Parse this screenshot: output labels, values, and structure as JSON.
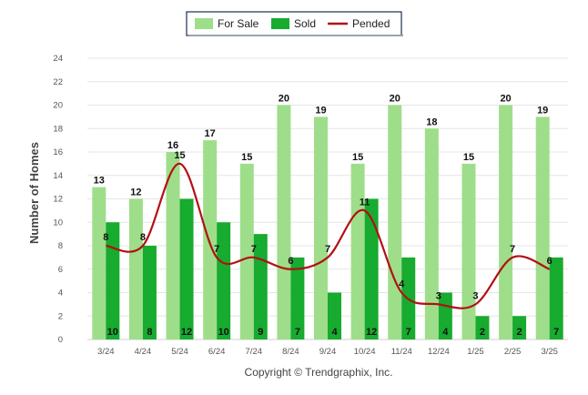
{
  "chart_data": {
    "type": "bar",
    "title": "",
    "xlabel": "",
    "ylabel": "Number of Homes",
    "ylim": [
      0,
      24
    ],
    "yticks": [
      0,
      2,
      4,
      6,
      8,
      10,
      12,
      14,
      16,
      18,
      20,
      22,
      24
    ],
    "grid": true,
    "legend_position": "top-center",
    "categories": [
      "3/24",
      "4/24",
      "5/24",
      "6/24",
      "7/24",
      "8/24",
      "9/24",
      "10/24",
      "11/24",
      "12/24",
      "1/25",
      "2/25",
      "3/25"
    ],
    "series": [
      {
        "name": "For Sale",
        "kind": "bar",
        "color": "#9ede8a",
        "values": [
          13,
          12,
          16,
          17,
          15,
          20,
          19,
          15,
          20,
          18,
          15,
          20,
          19
        ]
      },
      {
        "name": "Sold",
        "kind": "bar",
        "color": "#17ab2f",
        "values": [
          10,
          8,
          12,
          10,
          9,
          7,
          4,
          12,
          7,
          4,
          2,
          2,
          7
        ]
      },
      {
        "name": "Pended",
        "kind": "line",
        "color": "#b30f12",
        "values": [
          8,
          8,
          15,
          7,
          7,
          6,
          7,
          11,
          4,
          3,
          3,
          7,
          6
        ]
      }
    ]
  },
  "footer": {
    "credit": "Copyright © Trendgraphix, Inc."
  }
}
